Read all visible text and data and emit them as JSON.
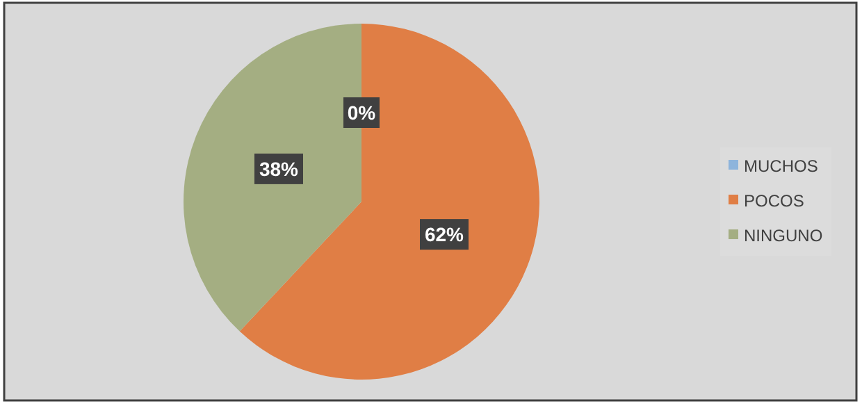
{
  "chart_data": {
    "type": "pie",
    "categories": [
      "MUCHOS",
      "POCOS",
      "NINGUNO"
    ],
    "values": [
      0,
      62,
      38
    ],
    "colors": [
      "#8db4dc",
      "#e07e45",
      "#a4ae82"
    ],
    "value_labels": [
      "0%",
      "62%",
      "38%"
    ],
    "legend": "right"
  }
}
